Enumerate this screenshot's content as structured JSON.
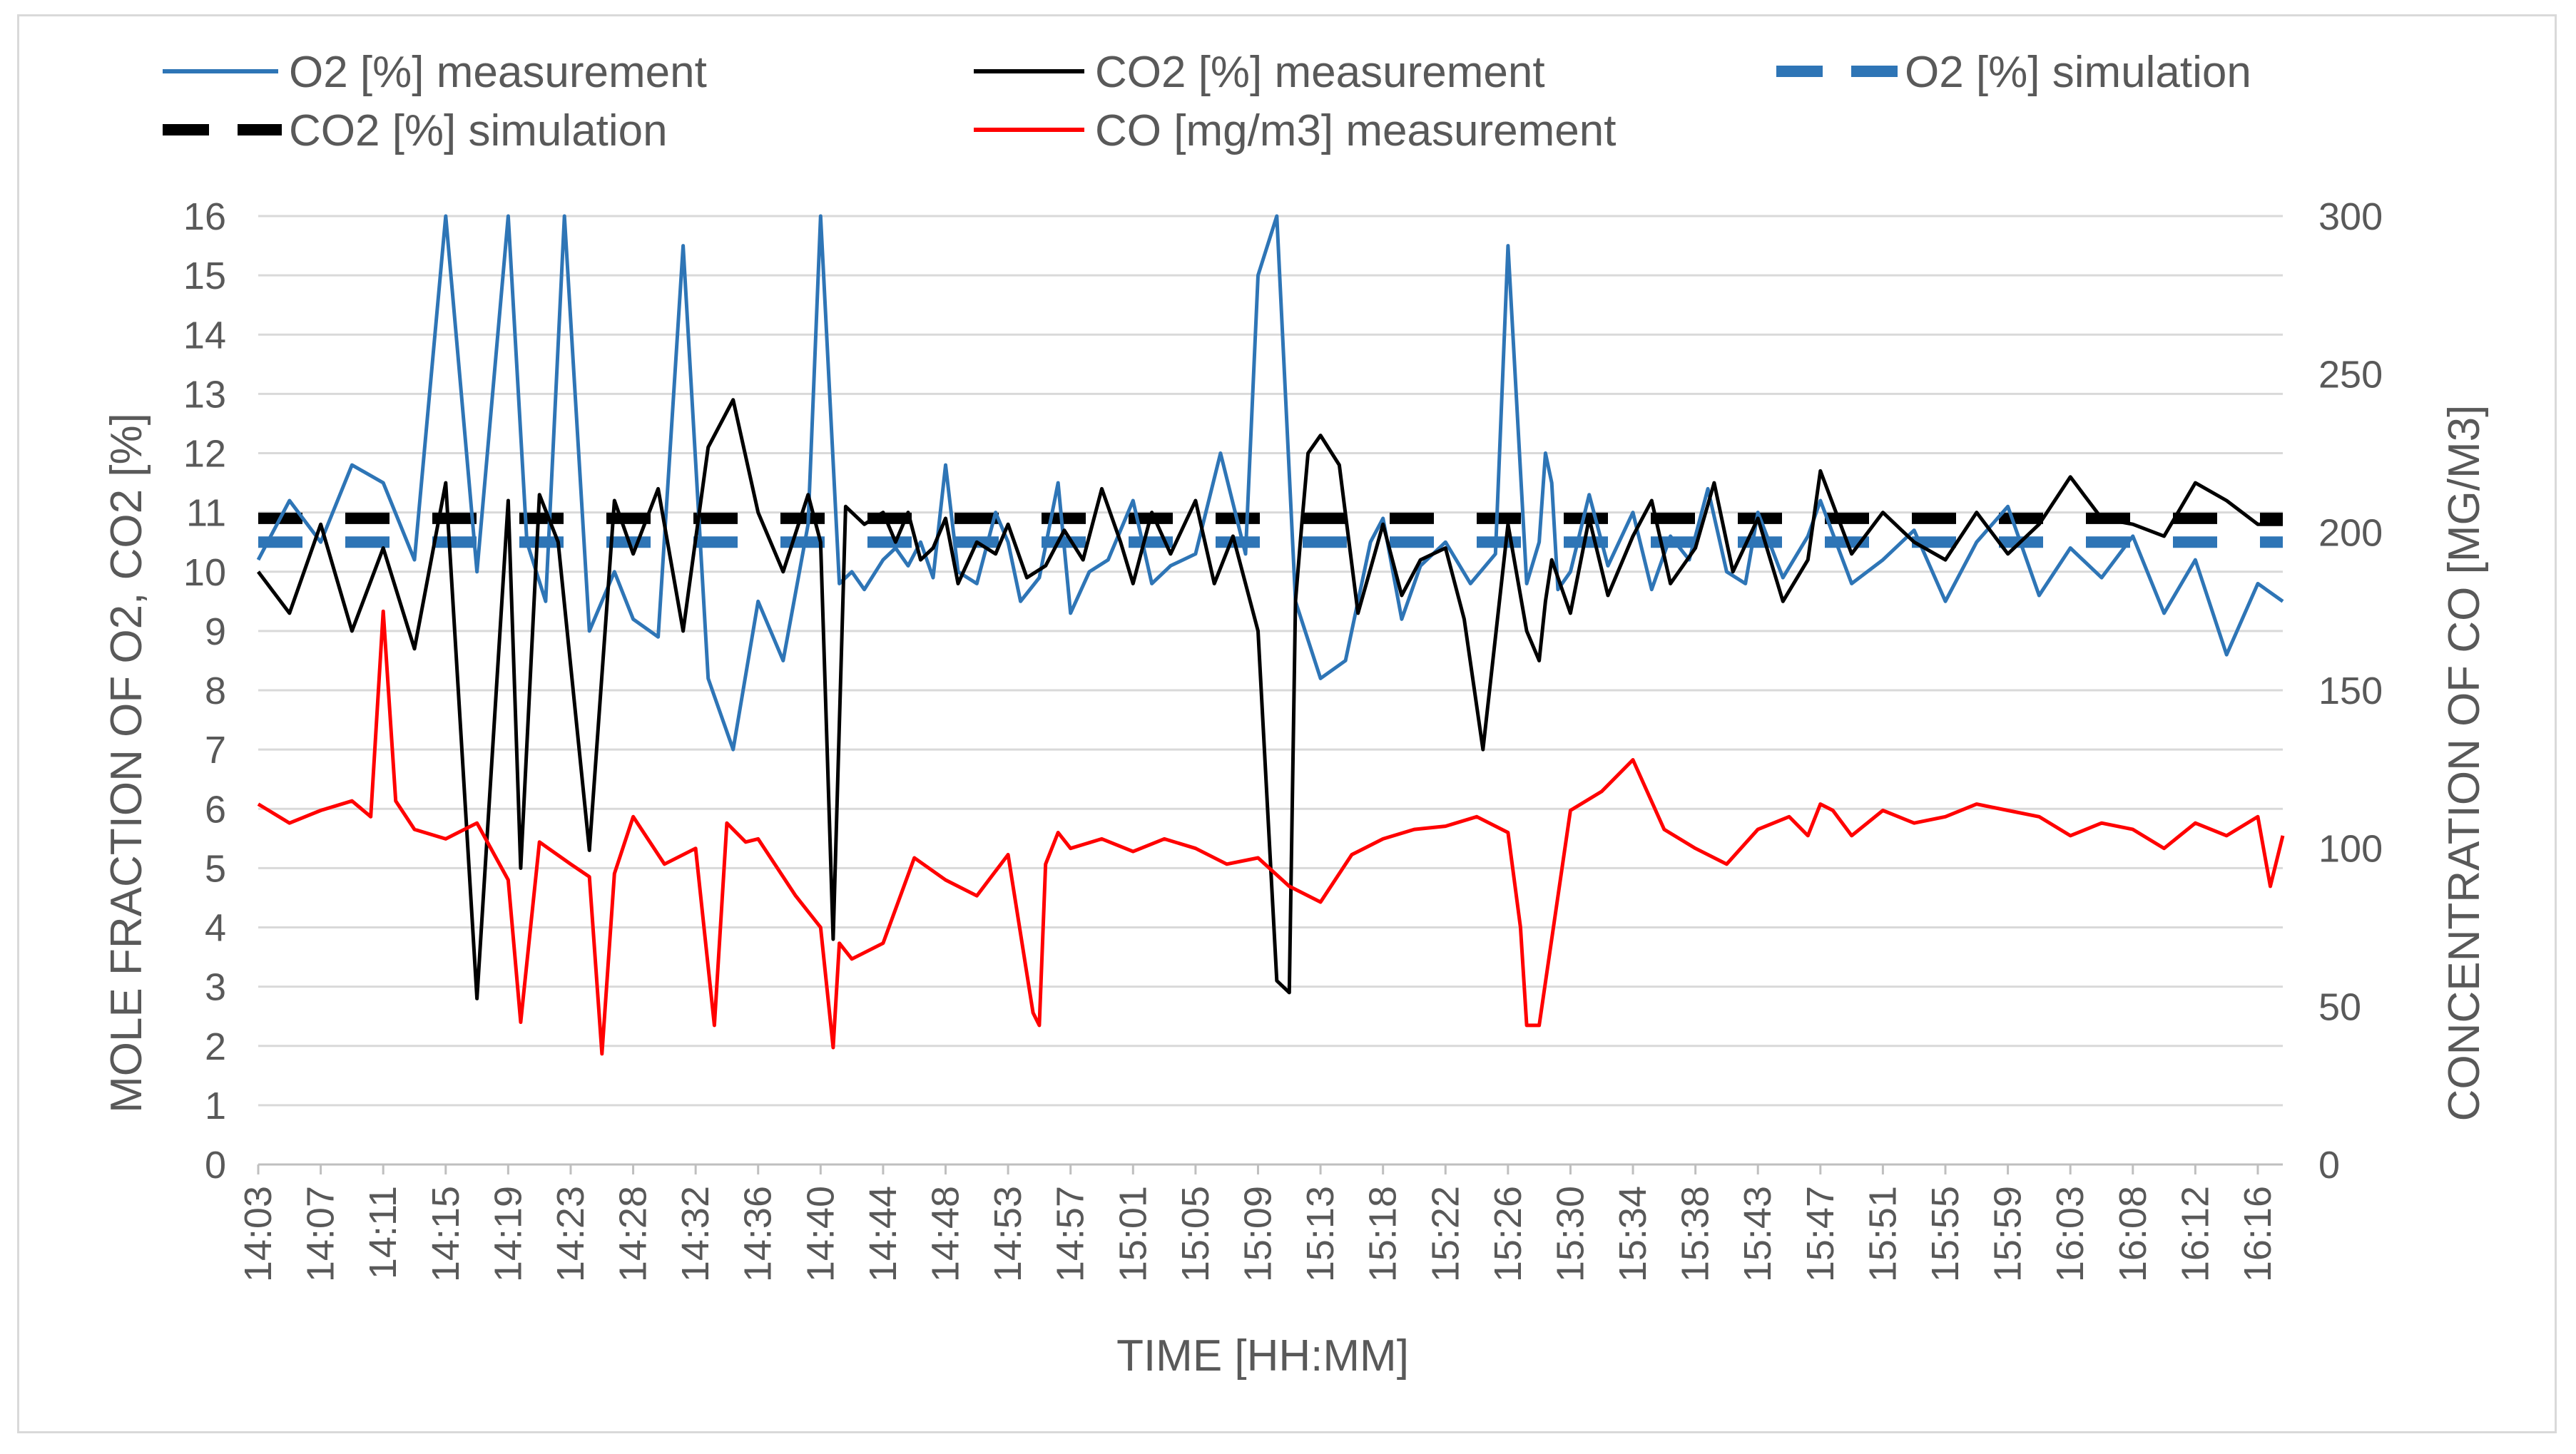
{
  "chart_data": {
    "type": "line",
    "title": "",
    "xlabel": "TIME [HH:MM]",
    "ylabel": "MOLE FRACTION OF O2, CO2 [%]",
    "y2label": "CONCENTRATION OF CO [MG/M3]",
    "ylim": [
      0,
      16
    ],
    "y2lim": [
      0,
      300
    ],
    "yticks": [
      "0",
      "1",
      "2",
      "3",
      "4",
      "5",
      "6",
      "7",
      "8",
      "9",
      "10",
      "11",
      "12",
      "13",
      "14",
      "15",
      "16"
    ],
    "y2ticks": [
      "0",
      "50",
      "100",
      "150",
      "200",
      "250",
      "300"
    ],
    "categories": [
      "14:03",
      "14:07",
      "14:11",
      "14:15",
      "14:19",
      "14:23",
      "14:28",
      "14:32",
      "14:36",
      "14:40",
      "14:44",
      "14:48",
      "14:53",
      "14:57",
      "15:01",
      "15:05",
      "15:09",
      "15:13",
      "15:18",
      "15:22",
      "15:26",
      "15:30",
      "15:34",
      "15:38",
      "15:43",
      "15:47",
      "15:51",
      "15:55",
      "15:59",
      "16:03",
      "16:08",
      "16:12",
      "16:16"
    ],
    "legend_position": "top",
    "colors": {
      "o2_measurement": "#2e75b6",
      "co2_measurement": "#000000",
      "o2_simulation": "#2e75b6",
      "co2_simulation": "#000000",
      "co_measurement": "#ff0000",
      "grid": "#d9d9d9",
      "axis": "#bfbfbf",
      "text": "#595959"
    },
    "series": [
      {
        "name": "O2 [%] measurement",
        "axis": "left",
        "style": "solid",
        "x": [
          0,
          0.5,
          1,
          1.5,
          2,
          2.5,
          3,
          3.5,
          4,
          4.3,
          4.6,
          4.9,
          5.3,
          5.7,
          6,
          6.4,
          6.8,
          7.2,
          7.6,
          8,
          8.4,
          8.8,
          9,
          9.3,
          9.5,
          9.7,
          10,
          10.2,
          10.4,
          10.6,
          10.8,
          11,
          11.2,
          11.5,
          11.8,
          12,
          12.2,
          12.5,
          12.8,
          13,
          13.3,
          13.6,
          14,
          14.3,
          14.6,
          15,
          15.4,
          15.8,
          16,
          16.3,
          16.6,
          17,
          17.4,
          17.8,
          18,
          18.3,
          18.6,
          19,
          19.4,
          19.8,
          20,
          20.3,
          20.5,
          20.6,
          20.7,
          20.8,
          21,
          21.3,
          21.6,
          22,
          22.3,
          22.6,
          22.9,
          23.2,
          23.5,
          23.8,
          24,
          24.4,
          24.8,
          25,
          25.5,
          26,
          26.5,
          27,
          27.5,
          28,
          28.5,
          29,
          29.5,
          30,
          30.5,
          31,
          31.5,
          32,
          32.4
        ],
        "values": [
          10.2,
          11.2,
          10.5,
          11.8,
          11.5,
          10.2,
          16.2,
          10.0,
          16.2,
          10.5,
          9.5,
          16.2,
          9.0,
          10.0,
          9.2,
          8.9,
          15.5,
          8.2,
          7.0,
          9.5,
          8.5,
          10.8,
          16.2,
          9.8,
          10.0,
          9.7,
          10.2,
          10.4,
          10.1,
          10.5,
          9.9,
          11.8,
          10.0,
          9.8,
          11.0,
          10.5,
          9.5,
          9.9,
          11.5,
          9.3,
          10.0,
          10.2,
          11.2,
          9.8,
          10.1,
          10.3,
          12.0,
          10.3,
          15.0,
          16.2,
          9.5,
          8.2,
          8.5,
          10.5,
          10.9,
          9.2,
          10.1,
          10.5,
          9.8,
          10.3,
          15.5,
          9.8,
          10.5,
          12.0,
          11.5,
          9.7,
          10.0,
          11.3,
          10.1,
          11.0,
          9.7,
          10.6,
          10.2,
          11.4,
          10.0,
          9.8,
          11.0,
          9.9,
          10.6,
          11.2,
          9.8,
          10.2,
          10.7,
          9.5,
          10.5,
          11.1,
          9.6,
          10.4,
          9.9,
          10.6,
          9.3,
          10.2,
          8.6,
          9.8,
          9.5
        ]
      },
      {
        "name": "CO2 [%] measurement",
        "axis": "left",
        "style": "solid",
        "x": [
          0,
          0.5,
          1,
          1.5,
          2,
          2.5,
          3,
          3.5,
          4,
          4.2,
          4.5,
          4.8,
          5.3,
          5.7,
          6,
          6.4,
          6.8,
          7.2,
          7.6,
          8,
          8.4,
          8.8,
          9,
          9.2,
          9.4,
          9.7,
          10,
          10.2,
          10.4,
          10.6,
          10.8,
          11,
          11.2,
          11.5,
          11.8,
          12,
          12.3,
          12.6,
          12.9,
          13.2,
          13.5,
          13.8,
          14,
          14.3,
          14.6,
          15,
          15.3,
          15.6,
          16,
          16.3,
          16.5,
          16.6,
          16.7,
          16.8,
          17,
          17.3,
          17.6,
          18,
          18.3,
          18.6,
          19,
          19.3,
          19.6,
          20,
          20.3,
          20.5,
          20.6,
          20.7,
          21,
          21.3,
          21.6,
          22,
          22.3,
          22.6,
          23,
          23.3,
          23.6,
          24,
          24.4,
          24.8,
          25,
          25.5,
          26,
          26.5,
          27,
          27.5,
          28,
          28.5,
          29,
          29.5,
          30,
          30.5,
          31,
          31.5,
          32,
          32.4
        ],
        "values": [
          10.0,
          9.3,
          10.8,
          9.0,
          10.4,
          8.7,
          11.5,
          2.8,
          11.2,
          5.0,
          11.3,
          10.5,
          5.3,
          11.2,
          10.3,
          11.4,
          9.0,
          12.1,
          12.9,
          11.0,
          10.0,
          11.3,
          10.5,
          3.8,
          11.1,
          10.8,
          11.0,
          10.5,
          11.0,
          10.2,
          10.4,
          10.9,
          9.8,
          10.5,
          10.3,
          10.8,
          9.9,
          10.1,
          10.7,
          10.2,
          11.4,
          10.5,
          9.8,
          11.0,
          10.3,
          11.2,
          9.8,
          10.6,
          9.0,
          3.1,
          2.9,
          9.5,
          10.8,
          12.0,
          12.3,
          11.8,
          9.3,
          10.8,
          9.6,
          10.2,
          10.4,
          9.2,
          7.0,
          10.8,
          9.0,
          8.5,
          9.5,
          10.2,
          9.3,
          10.9,
          9.6,
          10.6,
          11.2,
          9.8,
          10.4,
          11.5,
          10.0,
          10.9,
          9.5,
          10.2,
          11.7,
          10.3,
          11.0,
          10.5,
          10.2,
          11.0,
          10.3,
          10.8,
          11.6,
          10.9,
          10.8,
          10.6,
          11.5,
          11.2,
          10.8,
          10.8
        ]
      },
      {
        "name": "O2 [%] simulation",
        "axis": "left",
        "style": "dashed",
        "x": [
          0,
          32.4
        ],
        "values": [
          10.5,
          10.5
        ]
      },
      {
        "name": "CO2 [%] simulation",
        "axis": "left",
        "style": "dashed",
        "x": [
          0,
          32.4
        ],
        "values": [
          10.9,
          10.9
        ]
      },
      {
        "name": "CO [mg/m3] measurement",
        "axis": "right",
        "style": "solid",
        "x": [
          0,
          0.5,
          1,
          1.5,
          1.8,
          2,
          2.2,
          2.5,
          3,
          3.5,
          4,
          4.2,
          4.5,
          5,
          5.3,
          5.5,
          5.7,
          6,
          6.5,
          7,
          7.3,
          7.5,
          7.8,
          8,
          8.3,
          8.6,
          9,
          9.2,
          9.3,
          9.5,
          10,
          10.5,
          11,
          11.5,
          12,
          12.4,
          12.5,
          12.6,
          12.8,
          13,
          13.5,
          14,
          14.5,
          15,
          15.5,
          16,
          16.5,
          17,
          17.5,
          18,
          18.5,
          19,
          19.5,
          20,
          20.2,
          20.3,
          20.5,
          21,
          21.5,
          22,
          22.5,
          23,
          23.5,
          24,
          24.5,
          24.8,
          25,
          25.2,
          25.5,
          26,
          26.5,
          27,
          27.5,
          28,
          28.5,
          29,
          29.5,
          30,
          30.5,
          31,
          31.5,
          32,
          32.2,
          32.4
        ],
        "values": [
          114,
          108,
          112,
          115,
          110,
          175,
          115,
          106,
          103,
          108,
          90,
          45,
          102,
          95,
          91,
          35,
          92,
          110,
          95,
          100,
          44,
          108,
          102,
          103,
          94,
          85,
          75,
          37,
          70,
          65,
          70,
          97,
          90,
          85,
          98,
          48,
          44,
          95,
          105,
          100,
          103,
          99,
          103,
          100,
          95,
          97,
          88,
          83,
          98,
          103,
          106,
          107,
          110,
          105,
          75,
          44,
          44,
          112,
          118,
          128,
          106,
          100,
          95,
          106,
          110,
          104,
          114,
          112,
          104,
          112,
          108,
          110,
          114,
          112,
          110,
          104,
          108,
          106,
          100,
          108,
          104,
          110,
          88,
          104
        ]
      }
    ]
  },
  "legend": {
    "o2_meas": "O2 [%] measurement",
    "co2_meas": "CO2 [%] measurement",
    "o2_sim": "O2 [%] simulation",
    "co2_sim": "CO2 [%] simulation",
    "co_meas": "CO [mg/m3] measurement"
  }
}
